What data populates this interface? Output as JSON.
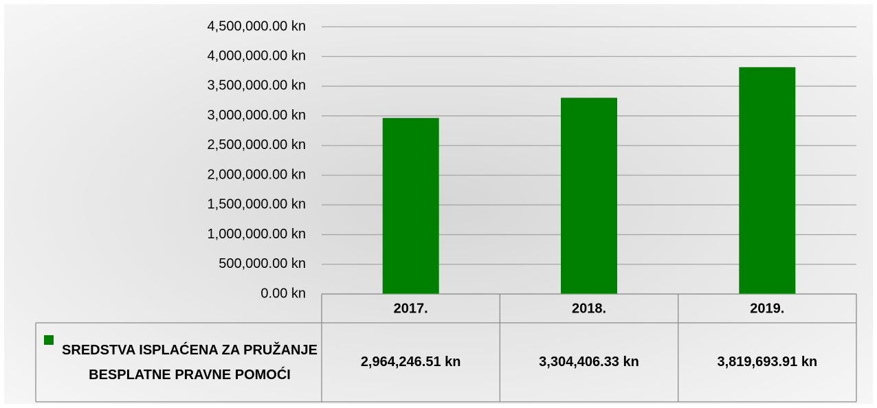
{
  "chart_data": {
    "type": "bar",
    "categories": [
      "2017.",
      "2018.",
      "2019."
    ],
    "series": [
      {
        "name": "SREDSTVA ISPLAĆENA ZA PRUŽANJE BESPLATNE PRAVNE POMOĆI",
        "color": "#008000",
        "values": [
          2964246.51,
          3304406.33,
          3819693.91
        ],
        "value_labels": [
          "2,964,246.51 kn",
          "3,304,406.33 kn",
          "3,819,693.91 kn"
        ]
      }
    ],
    "ylim": [
      0,
      4500000
    ],
    "yticks": [
      {
        "value": 0,
        "label": "0.00 kn"
      },
      {
        "value": 500000,
        "label": "500,000.00 kn"
      },
      {
        "value": 1000000,
        "label": "1,000,000.00 kn"
      },
      {
        "value": 1500000,
        "label": "1,500,000.00 kn"
      },
      {
        "value": 2000000,
        "label": "2,000,000.00 kn"
      },
      {
        "value": 2500000,
        "label": "2,500,000.00 kn"
      },
      {
        "value": 3000000,
        "label": "3,000,000.00 kn"
      },
      {
        "value": 3500000,
        "label": "3,500,000.00 kn"
      },
      {
        "value": 4000000,
        "label": "4,000,000.00 kn"
      },
      {
        "value": 4500000,
        "label": "4,500,000.00 kn"
      }
    ],
    "grid": true
  }
}
